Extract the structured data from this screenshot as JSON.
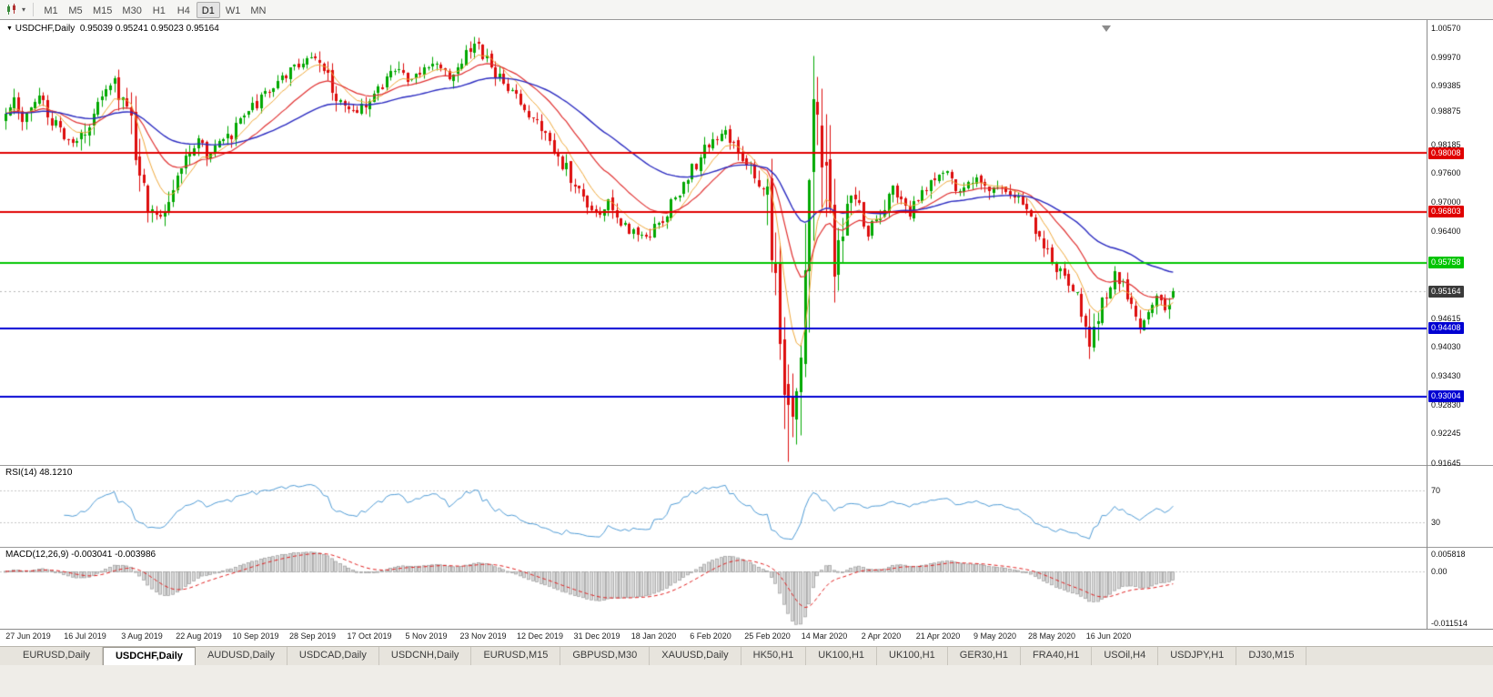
{
  "colors": {
    "bull": "#00A800",
    "bear": "#DD0D0D",
    "ma_fast": "#EFA83A",
    "ma_mid": "#E03030",
    "ma_slow": "#2B2BC0",
    "rsi_line": "#4F9BD5",
    "macd_hist_fill": "#D8D8D8",
    "macd_hist_stroke": "#9B9B9B",
    "macd_signal": "#E02020",
    "current_badge": "#3A3A3A"
  },
  "toolbar": {
    "timeframes": [
      "M1",
      "M5",
      "M15",
      "M30",
      "H1",
      "H4",
      "D1",
      "W1",
      "MN"
    ],
    "active_timeframe": "D1"
  },
  "chart": {
    "symbol_header": "USDCHF,Daily",
    "ohlc_text": "0.95039 0.95241 0.95023 0.95164",
    "price_scale_labels": [
      "1.00570",
      "0.99970",
      "0.99385",
      "0.98875",
      "0.98185",
      "0.97600",
      "0.97000",
      "0.96400",
      "0.94615",
      "0.94030",
      "0.93430",
      "0.92830",
      "0.92245",
      "0.91645"
    ],
    "levels": [
      {
        "label": "0.98008",
        "price": 0.98008,
        "color": "#E00000"
      },
      {
        "label": "0.96803",
        "price": 0.96803,
        "color": "#E00000"
      },
      {
        "label": "0.95758",
        "price": 0.95758,
        "color": "#00C400"
      },
      {
        "label": "0.94408",
        "price": 0.94408,
        "color": "#0000D2"
      },
      {
        "label": "0.93004",
        "price": 0.93004,
        "color": "#0000D2"
      }
    ],
    "current_price": {
      "label": "0.95164",
      "price": 0.95164
    }
  },
  "rsi": {
    "header": "RSI(14) 48.1210",
    "value": 48.121,
    "levels": [
      "70",
      "30"
    ]
  },
  "macd": {
    "header": "MACD(12,26,9) -0.003041 -0.003986",
    "value": -0.003041,
    "signal": -0.003986,
    "scale_top": "0.005818",
    "scale_zero": "0.00",
    "scale_bottom": "-0.011514"
  },
  "dates": [
    "27 Jun 2019",
    "16 Jul 2019",
    "3 Aug 2019",
    "22 Aug 2019",
    "10 Sep 2019",
    "28 Sep 2019",
    "17 Oct 2019",
    "5 Nov 2019",
    "23 Nov 2019",
    "12 Dec 2019",
    "31 Dec 2019",
    "18 Jan 2020",
    "6 Feb 2020",
    "25 Feb 2020",
    "14 Mar 2020",
    "2 Apr 2020",
    "21 Apr 2020",
    "9 May 2020",
    "28 May 2020",
    "16 Jun 2020"
  ],
  "tabs": {
    "active_index": 1,
    "items": [
      "EURUSD,Daily",
      "USDCHF,Daily",
      "AUDUSD,Daily",
      "USDCAD,Daily",
      "USDCNH,Daily",
      "EURUSD,M15",
      "GBPUSD,M30",
      "XAUUSD,Daily",
      "HK50,H1",
      "UK100,H1",
      "UK100,H1",
      "GER30,H1",
      "FRA40,H1",
      "USOil,H4",
      "USDJPY,H1",
      "DJ30,M15"
    ],
    "note": ""
  },
  "chart_data": {
    "type": "candlestick",
    "symbol": "USDCHF",
    "timeframe": "Daily",
    "last_ohlc": {
      "open": 0.95039,
      "high": 0.95241,
      "low": 0.95023,
      "close": 0.95164
    },
    "bars": 280,
    "seed": 7,
    "bar_spacing": 4.6,
    "y_axis": {
      "top": 1.0074,
      "bottom": 0.916
    },
    "indicators": {
      "ma_fast_period": 8,
      "ma_mid_period": 20,
      "ma_slow_period": 50,
      "rsi_period": 14,
      "macd": [
        12,
        26,
        9
      ]
    },
    "wick_pins": [
      [
        112,
        "h",
        1.004
      ],
      [
        187,
        "l",
        0.9167
      ],
      [
        193,
        "h",
        0.99
      ],
      [
        259,
        "l",
        0.9378
      ]
    ],
    "price_keyframes": [
      [
        0,
        0.987
      ],
      [
        2,
        0.99
      ],
      [
        4,
        0.9868
      ],
      [
        6,
        0.9898
      ],
      [
        8,
        0.9915
      ],
      [
        10,
        0.988
      ],
      [
        12,
        0.9855
      ],
      [
        14,
        0.983
      ],
      [
        16,
        0.9812
      ],
      [
        18,
        0.9825
      ],
      [
        20,
        0.987
      ],
      [
        22,
        0.9912
      ],
      [
        24,
        0.9938
      ],
      [
        26,
        0.9945
      ],
      [
        28,
        0.9902
      ],
      [
        30,
        0.9858
      ],
      [
        32,
        0.977
      ],
      [
        34,
        0.9705
      ],
      [
        36,
        0.9672
      ],
      [
        38,
        0.969
      ],
      [
        40,
        0.9738
      ],
      [
        42,
        0.9775
      ],
      [
        44,
        0.9808
      ],
      [
        46,
        0.982
      ],
      [
        48,
        0.9798
      ],
      [
        50,
        0.9812
      ],
      [
        53,
        0.983
      ],
      [
        56,
        0.9868
      ],
      [
        59,
        0.9895
      ],
      [
        62,
        0.992
      ],
      [
        65,
        0.9945
      ],
      [
        68,
        0.9972
      ],
      [
        71,
        0.9992
      ],
      [
        73,
        1.0002
      ],
      [
        75,
        0.9988
      ],
      [
        77,
        0.9955
      ],
      [
        79,
        0.9918
      ],
      [
        82,
        0.9895
      ],
      [
        84,
        0.9878
      ],
      [
        86,
        0.9902
      ],
      [
        88,
        0.9928
      ],
      [
        90,
        0.994
      ],
      [
        92,
        0.9958
      ],
      [
        94,
        0.9972
      ],
      [
        96,
        0.9948
      ],
      [
        98,
        0.9962
      ],
      [
        100,
        0.9978
      ],
      [
        102,
        0.9992
      ],
      [
        104,
        0.9975
      ],
      [
        106,
        0.996
      ],
      [
        108,
        0.9982
      ],
      [
        110,
        1.0002
      ],
      [
        112,
        1.0022
      ],
      [
        114,
        1.0005
      ],
      [
        116,
        0.9975
      ],
      [
        118,
        0.9952
      ],
      [
        120,
        0.9932
      ],
      [
        122,
        0.9912
      ],
      [
        124,
        0.9895
      ],
      [
        126,
        0.987
      ],
      [
        128,
        0.9845
      ],
      [
        130,
        0.982
      ],
      [
        132,
        0.98
      ],
      [
        134,
        0.9765
      ],
      [
        136,
        0.9735
      ],
      [
        138,
        0.9708
      ],
      [
        140,
        0.969
      ],
      [
        142,
        0.9682
      ],
      [
        144,
        0.9695
      ],
      [
        146,
        0.9668
      ],
      [
        148,
        0.9648
      ],
      [
        150,
        0.9638
      ],
      [
        152,
        0.9628
      ],
      [
        154,
        0.9635
      ],
      [
        156,
        0.9655
      ],
      [
        158,
        0.968
      ],
      [
        160,
        0.9705
      ],
      [
        162,
        0.9738
      ],
      [
        164,
        0.9768
      ],
      [
        166,
        0.9795
      ],
      [
        168,
        0.9818
      ],
      [
        170,
        0.9832
      ],
      [
        172,
        0.9838
      ],
      [
        174,
        0.9822
      ],
      [
        176,
        0.9795
      ],
      [
        178,
        0.9772
      ],
      [
        180,
        0.9748
      ],
      [
        182,
        0.97
      ],
      [
        183,
        0.963
      ],
      [
        184,
        0.954
      ],
      [
        185,
        0.944
      ],
      [
        186,
        0.933
      ],
      [
        187,
        0.921
      ],
      [
        188,
        0.928
      ],
      [
        189,
        0.939
      ],
      [
        190,
        0.934
      ],
      [
        191,
        0.948
      ],
      [
        192,
        0.965
      ],
      [
        193,
        0.982
      ],
      [
        194,
        0.9885
      ],
      [
        195,
        0.985
      ],
      [
        196,
        0.974
      ],
      [
        197,
        0.964
      ],
      [
        198,
        0.9565
      ],
      [
        199,
        0.959
      ],
      [
        200,
        0.965
      ],
      [
        202,
        0.9718
      ],
      [
        204,
        0.9682
      ],
      [
        206,
        0.9645
      ],
      [
        208,
        0.9662
      ],
      [
        210,
        0.97
      ],
      [
        212,
        0.9722
      ],
      [
        214,
        0.9705
      ],
      [
        216,
        0.9682
      ],
      [
        218,
        0.97
      ],
      [
        220,
        0.973
      ],
      [
        222,
        0.9752
      ],
      [
        224,
        0.9765
      ],
      [
        226,
        0.9745
      ],
      [
        228,
        0.9725
      ],
      [
        230,
        0.9742
      ],
      [
        232,
        0.9758
      ],
      [
        234,
        0.9738
      ],
      [
        236,
        0.972
      ],
      [
        238,
        0.9735
      ],
      [
        240,
        0.9722
      ],
      [
        242,
        0.97
      ],
      [
        244,
        0.9672
      ],
      [
        246,
        0.9648
      ],
      [
        248,
        0.962
      ],
      [
        250,
        0.9585
      ],
      [
        252,
        0.9555
      ],
      [
        254,
        0.9528
      ],
      [
        256,
        0.9495
      ],
      [
        258,
        0.9445
      ],
      [
        259,
        0.94
      ],
      [
        260,
        0.944
      ],
      [
        261,
        0.9478
      ],
      [
        263,
        0.9515
      ],
      [
        265,
        0.9545
      ],
      [
        267,
        0.9528
      ],
      [
        269,
        0.949
      ],
      [
        271,
        0.9452
      ],
      [
        273,
        0.9475
      ],
      [
        275,
        0.9502
      ],
      [
        277,
        0.9488
      ],
      [
        279,
        0.95164
      ]
    ]
  }
}
